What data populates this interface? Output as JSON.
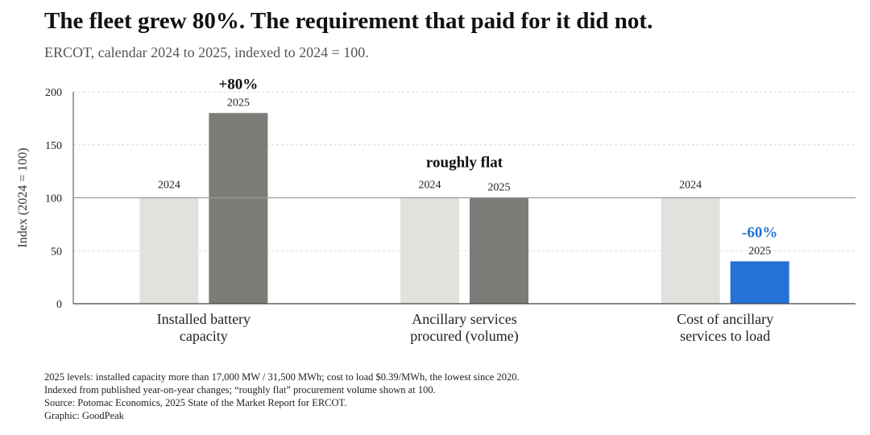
{
  "header": {
    "title": "The fleet grew 80%. The requirement that paid for it did not.",
    "subtitle": "ERCOT, calendar 2024 to 2025, indexed to 2024 = 100."
  },
  "chart_data": {
    "type": "bar",
    "ylabel": "Index (2024 = 100)",
    "ylim": [
      0,
      200
    ],
    "yticks": [
      0,
      50,
      100,
      150,
      200
    ],
    "reference_line": 100,
    "grid": true,
    "categories": [
      [
        "Installed battery",
        "capacity"
      ],
      [
        "Ancillary services",
        "procured (volume)"
      ],
      [
        "Cost of ancillary",
        "services to load"
      ]
    ],
    "series": [
      {
        "name": "2024",
        "values": [
          100,
          100,
          100
        ],
        "color": "#e2e1dd"
      },
      {
        "name": "2025",
        "values": [
          180,
          100,
          40
        ],
        "colors": [
          "#7c7b77",
          "#7c7b77",
          "#2571d6"
        ]
      }
    ],
    "annotations": [
      {
        "category": 0,
        "text": "+80%",
        "color": "#111111"
      },
      {
        "category": 1,
        "text": "roughly flat",
        "color": "#111111"
      },
      {
        "category": 2,
        "text": "-60%",
        "color": "#2571d6"
      }
    ]
  },
  "notes": [
    "2025 levels: installed capacity more than 17,000 MW / 31,500 MWh; cost to load $0.39/MWh, the lowest since 2020.",
    "Indexed from published year-on-year changes; “roughly flat” procurement volume shown at 100.",
    "Source: Potomac Economics, 2025 State of the Market Report for ERCOT.",
    "Graphic: GoodPeak"
  ]
}
